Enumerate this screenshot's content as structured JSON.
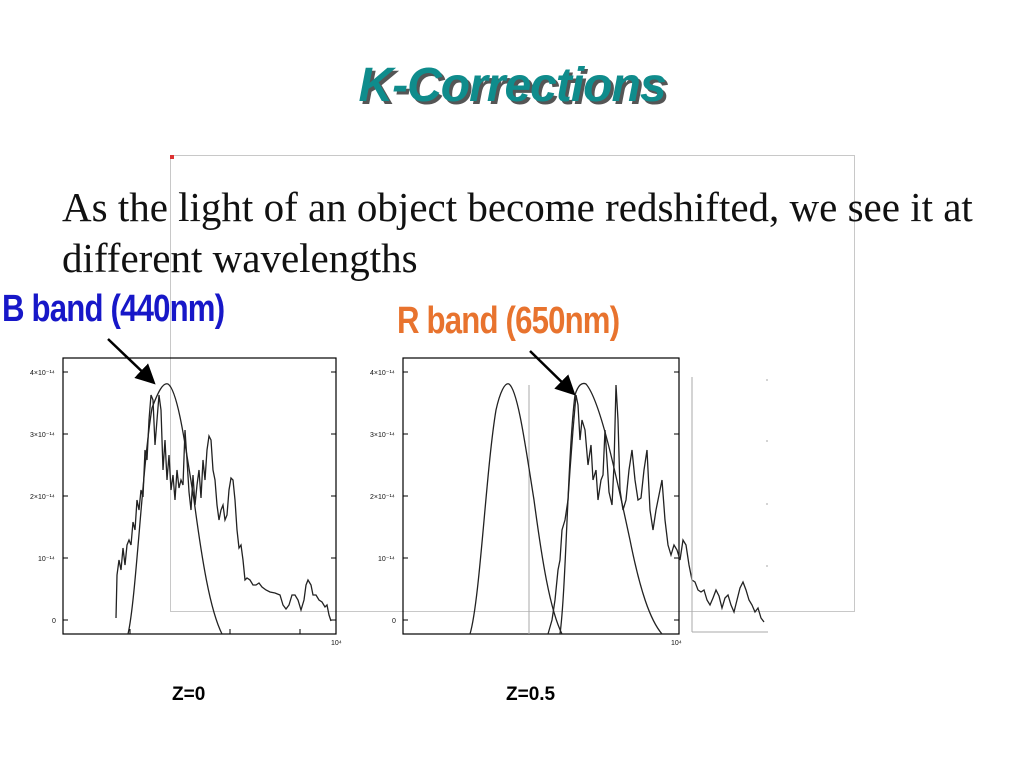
{
  "slide": {
    "title": "K-Corrections",
    "body": "As the light of an object become redshifted, we see it at different wavelengths",
    "labels": {
      "b_band": "B band (440nm)",
      "r_band": "R band (650nm)",
      "z0": "Z=0",
      "z05": "Z=0.5"
    },
    "colors": {
      "title": "#0f8c8c",
      "b_band": "#1717c8",
      "r_band": "#e8732e"
    }
  },
  "plots": {
    "y_tick_labels": [
      "4×10⁻¹⁴",
      "3×10⁻¹⁴",
      "2×10⁻¹⁴",
      "10⁻¹⁴",
      "0"
    ],
    "x_tick_label": "10⁴"
  }
}
